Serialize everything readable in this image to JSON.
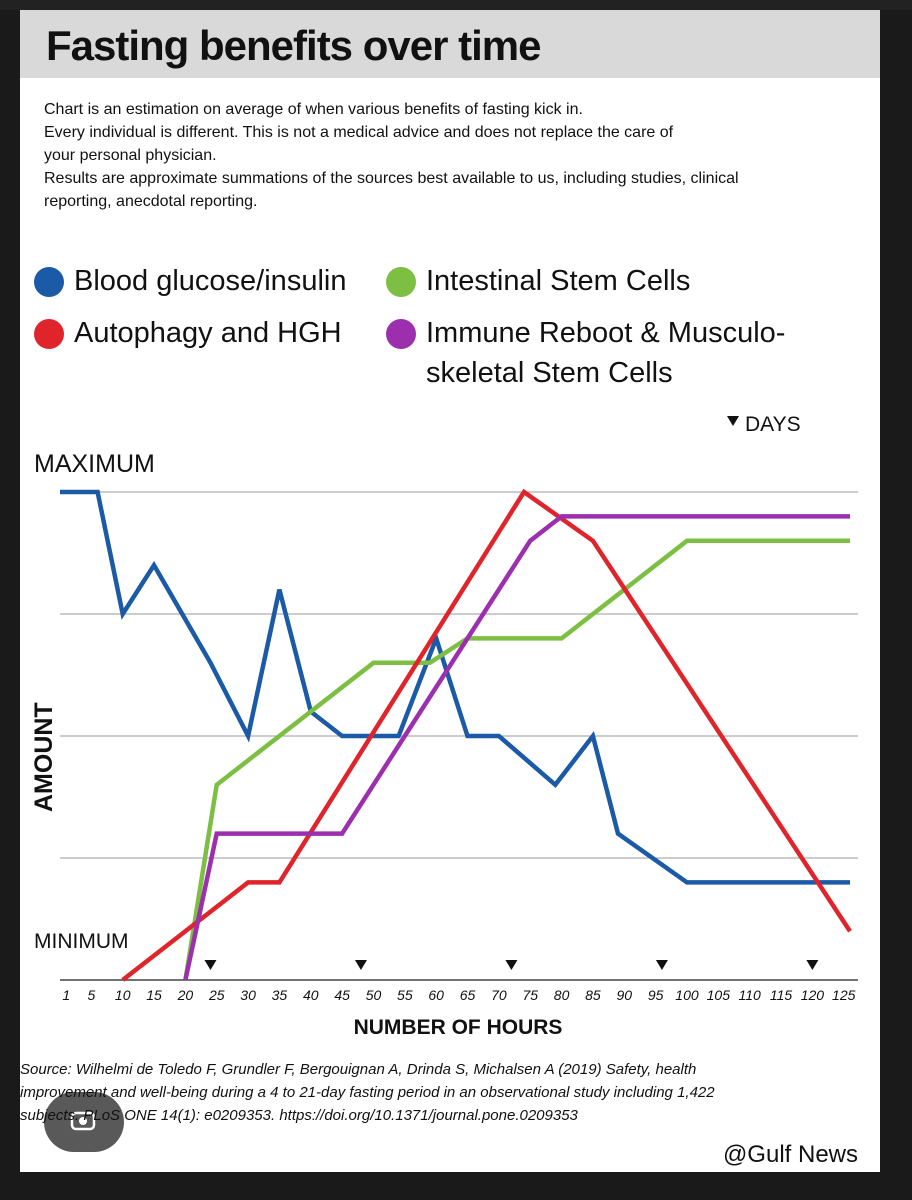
{
  "title": "Fasting benefits over time",
  "intro": [
    "Chart is an estimation on average of when various benefits of fasting kick in.",
    "Every individual is different. This is not a medical advice and does not replace the care of",
    "your personal physician.",
    "Results are approximate summations of the sources best available to us, including studies, clinical",
    "reporting, anecdotal reporting."
  ],
  "legend": [
    {
      "label": "Blood glucose/insulin",
      "color": "#1a5aa6"
    },
    {
      "label": "Intestinal Stem Cells",
      "color": "#7cbf43"
    },
    {
      "label": "Autophagy and HGH",
      "color": "#e0242b"
    },
    {
      "label": "Immune Reboot & Musculo-",
      "label2": "skeletal Stem Cells",
      "color": "#9b2fae"
    }
  ],
  "days_label": "DAYS",
  "max_label": "MAXIMUM",
  "min_label": "MINIMUM",
  "source": {
    "line1": "Source: Wilhelmi de Toledo F, Grundler F, Bergouignan A, Drinda S, Michalsen A (2019) Safety, health",
    "line2": "improvement and well-being during a 4 to 21-day fasting period in an observational study including 1,422",
    "line3": "subjects. PLoS ONE 14(1): e0209353. https://doi.org/10.1371/journal.pone.0209353"
  },
  "credit": "@Gulf News",
  "chart_data": {
    "type": "line",
    "title": "Fasting benefits over time",
    "xlabel": "NUMBER OF HOURS",
    "ylabel": "AMOUNT",
    "x_ticks": [
      1,
      5,
      10,
      15,
      20,
      25,
      30,
      35,
      40,
      45,
      50,
      55,
      60,
      65,
      70,
      75,
      80,
      85,
      90,
      95,
      100,
      105,
      110,
      115,
      120,
      125
    ],
    "xlim": [
      0,
      126
    ],
    "ylim": [
      0,
      100
    ],
    "day_markers": [
      24,
      48,
      72,
      96,
      120
    ],
    "grid": true,
    "series": [
      {
        "name": "Blood glucose/insulin",
        "color": "#1a5aa6",
        "points": [
          [
            0,
            100
          ],
          [
            6,
            100
          ],
          [
            10,
            75
          ],
          [
            15,
            85
          ],
          [
            24,
            65
          ],
          [
            30,
            50
          ],
          [
            35,
            80
          ],
          [
            40,
            55
          ],
          [
            45,
            50
          ],
          [
            54,
            50
          ],
          [
            60,
            70
          ],
          [
            65,
            50
          ],
          [
            70,
            50
          ],
          [
            79,
            40
          ],
          [
            85,
            50
          ],
          [
            89,
            30
          ],
          [
            100,
            20
          ],
          [
            126,
            20
          ]
        ]
      },
      {
        "name": "Intestinal Stem Cells",
        "color": "#7cbf43",
        "points": [
          [
            20,
            0
          ],
          [
            25,
            40
          ],
          [
            50,
            65
          ],
          [
            59,
            65
          ],
          [
            65,
            70
          ],
          [
            80,
            70
          ],
          [
            100,
            90
          ],
          [
            126,
            90
          ]
        ]
      },
      {
        "name": "Autophagy and HGH",
        "color": "#e0242b",
        "points": [
          [
            10,
            0
          ],
          [
            15,
            5
          ],
          [
            30,
            20
          ],
          [
            35,
            20
          ],
          [
            74,
            100
          ],
          [
            85,
            90
          ],
          [
            126,
            10
          ]
        ]
      },
      {
        "name": "Immune Reboot & Musculo-skeletal Stem Cells",
        "color": "#9b2fae",
        "points": [
          [
            20,
            0
          ],
          [
            25,
            30
          ],
          [
            45,
            30
          ],
          [
            75,
            90
          ],
          [
            80,
            95
          ],
          [
            126,
            95
          ]
        ]
      }
    ]
  }
}
